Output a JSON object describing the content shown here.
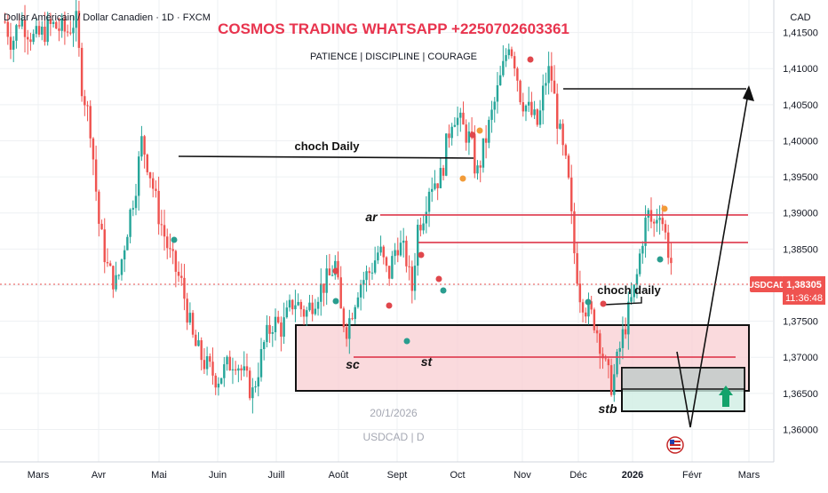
{
  "header": {
    "symbol_title": "Dollar Américain / Dollar Canadien · 1D · FXCM",
    "banner": "COSMOS TRADING WHATSAPP +2250702603361",
    "motto": "PATIENCE | DISCIPLINE | COURAGE"
  },
  "price_axis": {
    "currency_label": "CAD"
  },
  "watermark": {
    "date": "20/1/2026",
    "symbol": "USDCAD | D"
  },
  "price_tag": {
    "symbol": "USDCAD",
    "price": "1,38305",
    "countdown": "11:36:48"
  },
  "colors": {
    "up": "#26a69a",
    "down": "#ef5350",
    "banner": "#e8344e",
    "zone_fill": "#f8cdd1",
    "target_fill": "#cfeee3",
    "box_fill": "#c9c9c9",
    "grid": "#eef0f3"
  },
  "annotations": {
    "choch_daily": "choch Daily",
    "choch_daily_small": "choch daily",
    "ar": "ar",
    "sc": "sc",
    "st": "st",
    "stb": "stb"
  },
  "chart_data": {
    "type": "candlestick",
    "symbol": "USDCAD",
    "timeframe": "1D",
    "ylim": [
      1.3555,
      1.4195
    ],
    "y_ticks": [
      "1,36000",
      "1,36500",
      "1,37000",
      "1,37500",
      "1,38000",
      "1,38500",
      "1,39000",
      "1,39500",
      "1,40000",
      "1,40500",
      "1,41000",
      "1,41500"
    ],
    "x_ticks": [
      "Mars",
      "Avr",
      "Mai",
      "Juin",
      "Juill",
      "Août",
      "Sept",
      "Oct",
      "Nov",
      "Déc",
      "2026",
      "Févr",
      "Mars"
    ],
    "last_price": 1.38305,
    "close_path": [
      [
        0,
        1.4165
      ],
      [
        0.012,
        1.4135
      ],
      [
        0.025,
        1.417
      ],
      [
        0.05,
        1.414
      ],
      [
        0.08,
        1.416
      ],
      [
        0.105,
        1.415
      ],
      [
        0.12,
        1.417
      ],
      [
        0.13,
        1.408
      ],
      [
        0.145,
        1.402
      ],
      [
        0.16,
        1.388
      ],
      [
        0.175,
        1.382
      ],
      [
        0.19,
        1.38
      ],
      [
        0.2,
        1.3845
      ],
      [
        0.21,
        1.389
      ],
      [
        0.222,
        1.394
      ],
      [
        0.232,
        1.4
      ],
      [
        0.245,
        1.396
      ],
      [
        0.26,
        1.39
      ],
      [
        0.28,
        1.384
      ],
      [
        0.3,
        1.38
      ],
      [
        0.32,
        1.372
      ],
      [
        0.34,
        1.369
      ],
      [
        0.36,
        1.367
      ],
      [
        0.39,
        1.37
      ],
      [
        0.42,
        1.365
      ],
      [
        0.44,
        1.372
      ],
      [
        0.455,
        1.375
      ],
      [
        0.47,
        1.374
      ],
      [
        0.49,
        1.378
      ],
      [
        0.51,
        1.376
      ],
      [
        0.53,
        1.379
      ],
      [
        0.55,
        1.381
      ],
      [
        0.56,
        1.383
      ],
      [
        0.57,
        1.376
      ],
      [
        0.58,
        1.374
      ],
      [
        0.6,
        1.38
      ],
      [
        0.62,
        1.382
      ],
      [
        0.635,
        1.385
      ],
      [
        0.65,
        1.381
      ],
      [
        0.665,
        1.386
      ],
      [
        0.68,
        1.384
      ],
      [
        0.69,
        1.379
      ],
      [
        0.7,
        1.388
      ],
      [
        0.71,
        1.39
      ],
      [
        0.72,
        1.394
      ],
      [
        0.74,
        1.395
      ],
      [
        0.75,
        1.4
      ],
      [
        0.76,
        1.404
      ],
      [
        0.775,
        1.402
      ],
      [
        0.79,
        1.4
      ],
      [
        0.8,
        1.395
      ],
      [
        0.815,
        1.4
      ],
      [
        0.83,
        1.405
      ],
      [
        0.845,
        1.41
      ],
      [
        0.855,
        1.414
      ],
      [
        0.865,
        1.411
      ],
      [
        0.875,
        1.406
      ],
      [
        0.89,
        1.404
      ],
      [
        0.905,
        1.402
      ],
      [
        0.915,
        1.408
      ],
      [
        0.925,
        1.41
      ],
      [
        0.935,
        1.404
      ],
      [
        0.945,
        1.399
      ],
      [
        0.955,
        1.395
      ],
      [
        0.965,
        1.385
      ],
      [
        0.975,
        1.379
      ],
      [
        0.985,
        1.377
      ],
      [
        1.0,
        1.375
      ],
      [
        1.01,
        1.372
      ],
      [
        1.02,
        1.368
      ],
      [
        1.03,
        1.366
      ],
      [
        1.045,
        1.372
      ],
      [
        1.06,
        1.377
      ],
      [
        1.07,
        1.38
      ],
      [
        1.08,
        1.386
      ],
      [
        1.09,
        1.39
      ],
      [
        1.1,
        1.388
      ],
      [
        1.11,
        1.391
      ],
      [
        1.12,
        1.387
      ],
      [
        1.13,
        1.383
      ]
    ]
  }
}
